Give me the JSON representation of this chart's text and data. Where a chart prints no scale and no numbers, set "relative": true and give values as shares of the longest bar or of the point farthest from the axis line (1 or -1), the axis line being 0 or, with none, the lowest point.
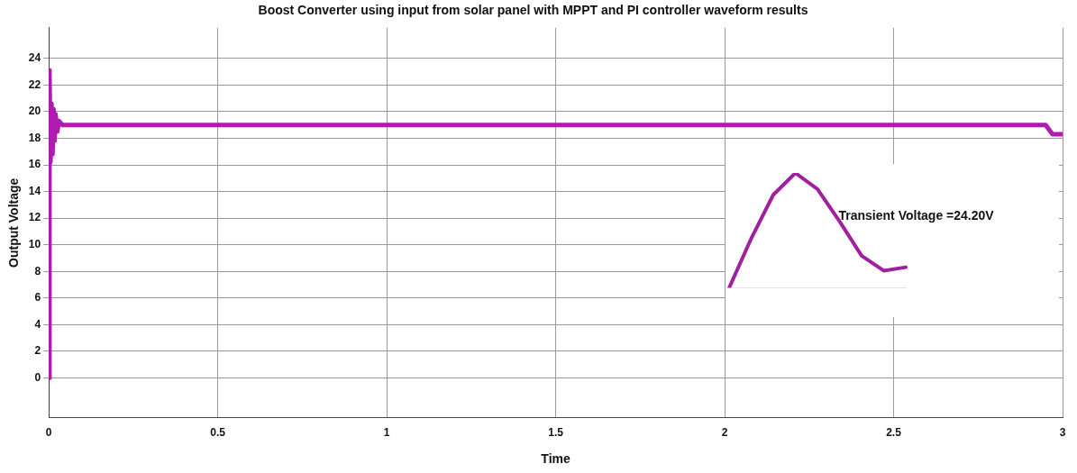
{
  "chart_data": [
    {
      "type": "line",
      "title": "Boost Converter using input from solar panel with MPPT and PI controller waveform results",
      "xlabel": "Time",
      "ylabel": "Output Voltage",
      "xlim": [
        0,
        3
      ],
      "xticks": [
        0,
        0.5,
        1,
        1.5,
        2,
        2.5,
        3
      ],
      "ylim": [
        -3,
        26.3
      ],
      "yticks": [
        0,
        2,
        4,
        6,
        8,
        10,
        12,
        14,
        16,
        18,
        20,
        22,
        24
      ],
      "grid": true,
      "legend": false,
      "marker": "none",
      "line_style": "solid",
      "series": [
        {
          "color": "#b01cb0",
          "x": [
            0,
            0.002,
            0.005,
            0.008,
            0.011,
            0.014,
            0.017,
            0.02,
            0.025,
            0.03,
            0.04,
            2.95,
            2.97,
            3
          ],
          "values": [
            0,
            23.1,
            16.2,
            20.6,
            16.8,
            20.2,
            17.8,
            19.8,
            18.5,
            19.3,
            19,
            19,
            18.3,
            18.3
          ]
        }
      ]
    },
    {
      "type": "line",
      "relative": true,
      "categories": [
        null,
        null,
        null,
        null,
        null,
        null,
        null,
        null,
        null
      ],
      "annotations": [
        "Transient Voltage =24.20V"
      ],
      "legend": false,
      "marker": "none",
      "line_style": "solid",
      "series": [
        {
          "color": "#a020a0",
          "values": [
            0,
            0.43,
            0.81,
            1,
            0.86,
            0.58,
            0.28,
            0.15,
            0.18
          ]
        }
      ]
    }
  ]
}
